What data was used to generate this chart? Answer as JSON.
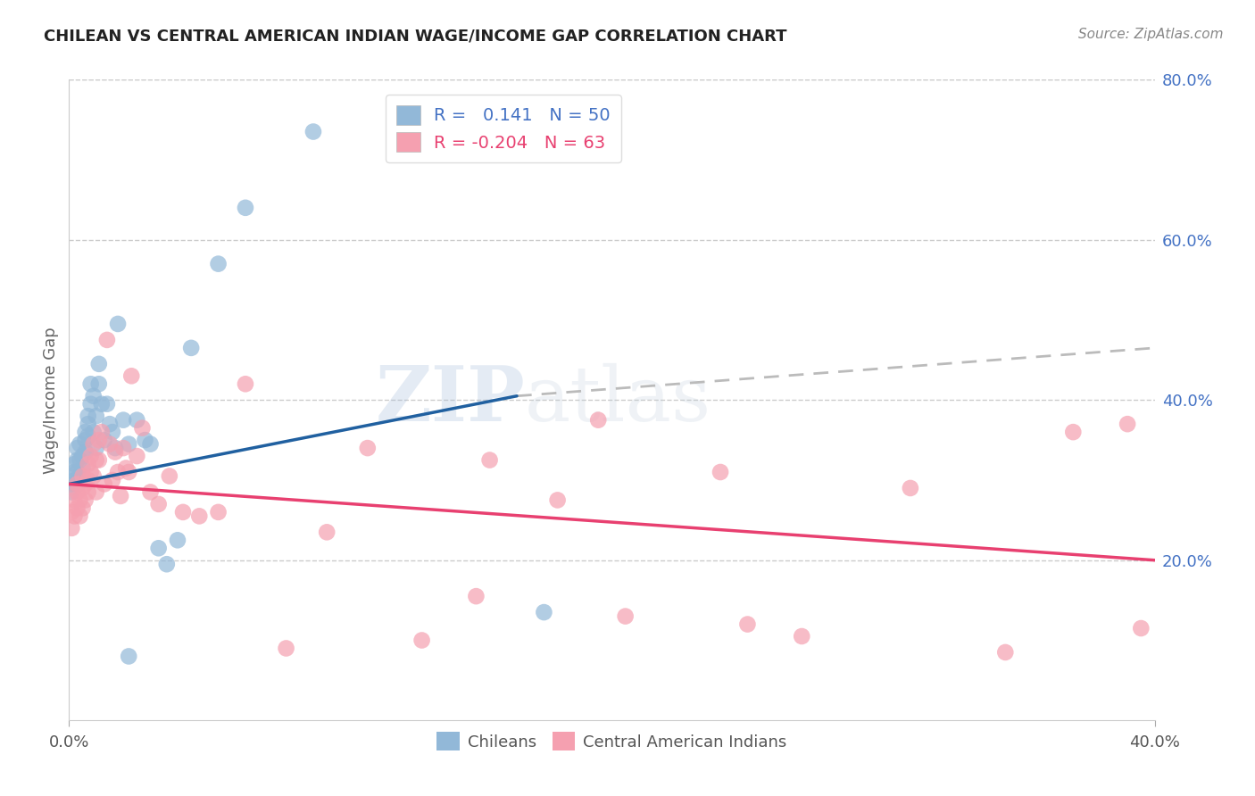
{
  "title": "CHILEAN VS CENTRAL AMERICAN INDIAN WAGE/INCOME GAP CORRELATION CHART",
  "source": "Source: ZipAtlas.com",
  "ylabel": "Wage/Income Gap",
  "watermark_zip": "ZIP",
  "watermark_atlas": "atlas",
  "xlim": [
    0.0,
    0.4
  ],
  "ylim": [
    0.0,
    0.8
  ],
  "yticks_right": [
    0.2,
    0.4,
    0.6,
    0.8
  ],
  "ytick_labels_right": [
    "20.0%",
    "40.0%",
    "60.0%",
    "80.0%"
  ],
  "blue_color": "#92b8d8",
  "pink_color": "#f5a0b0",
  "line_blue": "#2060a0",
  "line_pink": "#e84070",
  "dash_color": "#bbbbbb",
  "chileans_x": [
    0.001,
    0.001,
    0.002,
    0.002,
    0.002,
    0.003,
    0.003,
    0.003,
    0.003,
    0.004,
    0.004,
    0.004,
    0.005,
    0.005,
    0.005,
    0.006,
    0.006,
    0.006,
    0.007,
    0.007,
    0.007,
    0.008,
    0.008,
    0.009,
    0.009,
    0.01,
    0.01,
    0.011,
    0.011,
    0.012,
    0.013,
    0.014,
    0.015,
    0.016,
    0.017,
    0.018,
    0.02,
    0.022,
    0.025,
    0.028,
    0.03,
    0.033,
    0.036,
    0.04,
    0.045,
    0.055,
    0.065,
    0.09,
    0.022,
    0.175
  ],
  "chileans_y": [
    0.295,
    0.285,
    0.31,
    0.3,
    0.32,
    0.295,
    0.31,
    0.325,
    0.34,
    0.305,
    0.325,
    0.345,
    0.3,
    0.315,
    0.33,
    0.35,
    0.335,
    0.36,
    0.38,
    0.355,
    0.37,
    0.395,
    0.42,
    0.405,
    0.36,
    0.34,
    0.38,
    0.42,
    0.445,
    0.395,
    0.35,
    0.395,
    0.37,
    0.36,
    0.34,
    0.495,
    0.375,
    0.345,
    0.375,
    0.35,
    0.345,
    0.215,
    0.195,
    0.225,
    0.465,
    0.57,
    0.64,
    0.735,
    0.08,
    0.135
  ],
  "central_x": [
    0.001,
    0.001,
    0.002,
    0.002,
    0.003,
    0.003,
    0.003,
    0.004,
    0.004,
    0.005,
    0.005,
    0.005,
    0.006,
    0.006,
    0.007,
    0.007,
    0.007,
    0.008,
    0.008,
    0.009,
    0.009,
    0.01,
    0.01,
    0.011,
    0.011,
    0.012,
    0.013,
    0.014,
    0.015,
    0.016,
    0.017,
    0.018,
    0.019,
    0.02,
    0.021,
    0.022,
    0.023,
    0.025,
    0.027,
    0.03,
    0.033,
    0.037,
    0.042,
    0.048,
    0.055,
    0.065,
    0.08,
    0.095,
    0.11,
    0.13,
    0.155,
    0.18,
    0.205,
    0.195,
    0.24,
    0.27,
    0.31,
    0.345,
    0.37,
    0.39,
    0.395,
    0.15,
    0.25
  ],
  "central_y": [
    0.26,
    0.24,
    0.275,
    0.255,
    0.285,
    0.265,
    0.295,
    0.275,
    0.255,
    0.29,
    0.265,
    0.305,
    0.295,
    0.275,
    0.32,
    0.3,
    0.285,
    0.31,
    0.33,
    0.305,
    0.345,
    0.325,
    0.285,
    0.35,
    0.325,
    0.36,
    0.295,
    0.475,
    0.345,
    0.3,
    0.335,
    0.31,
    0.28,
    0.34,
    0.315,
    0.31,
    0.43,
    0.33,
    0.365,
    0.285,
    0.27,
    0.305,
    0.26,
    0.255,
    0.26,
    0.42,
    0.09,
    0.235,
    0.34,
    0.1,
    0.325,
    0.275,
    0.13,
    0.375,
    0.31,
    0.105,
    0.29,
    0.085,
    0.36,
    0.37,
    0.115,
    0.155,
    0.12
  ],
  "blue_line_x": [
    0.0,
    0.165
  ],
  "blue_line_y": [
    0.295,
    0.405
  ],
  "dash_line_x": [
    0.165,
    0.4
  ],
  "dash_line_y": [
    0.405,
    0.465
  ],
  "pink_line_x": [
    0.0,
    0.4
  ],
  "pink_line_y": [
    0.295,
    0.2
  ]
}
